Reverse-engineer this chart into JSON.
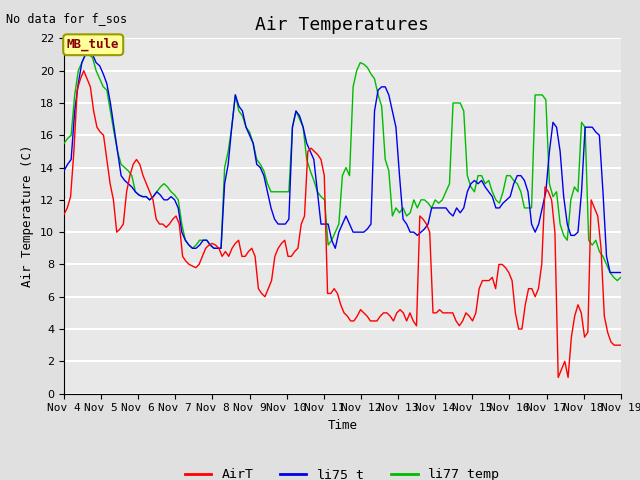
{
  "title": "Air Temperatures",
  "ylabel": "Air Temperature (C)",
  "xlabel": "Time",
  "no_data_text": "No data for f_sos",
  "station_label": "MB_tule",
  "ylim": [
    0,
    22
  ],
  "x_tick_labels": [
    "Nov 4",
    "Nov 5",
    "Nov 6",
    "Nov 7",
    "Nov 8",
    "Nov 9",
    "Nov 10",
    "Nov 11",
    "Nov 12",
    "Nov 13",
    "Nov 14",
    "Nov 15",
    "Nov 16",
    "Nov 17",
    "Nov 18",
    "Nov 19"
  ],
  "background_color": "#e0e0e0",
  "plot_bg_color": "#e8e8e8",
  "grid_color": "#ffffff",
  "colors": {
    "AirT": "#ff0000",
    "li75_t": "#0000ee",
    "li77_temp": "#00bb00"
  },
  "title_fontsize": 13,
  "label_fontsize": 9,
  "tick_fontsize": 8,
  "AirT": [
    11.1,
    11.5,
    12.2,
    15.0,
    18.8,
    19.5,
    20.0,
    19.5,
    19.0,
    17.5,
    16.5,
    16.2,
    16.0,
    14.5,
    13.0,
    12.0,
    10.0,
    10.2,
    10.5,
    12.5,
    13.5,
    14.2,
    14.5,
    14.2,
    13.5,
    13.0,
    12.5,
    12.0,
    10.8,
    10.5,
    10.5,
    10.3,
    10.5,
    10.8,
    11.0,
    10.5,
    8.5,
    8.2,
    8.0,
    7.9,
    7.8,
    8.0,
    8.5,
    9.0,
    9.2,
    9.3,
    9.2,
    9.0,
    8.5,
    8.8,
    8.5,
    9.0,
    9.3,
    9.5,
    8.5,
    8.5,
    8.8,
    9.0,
    8.5,
    6.5,
    6.2,
    6.0,
    6.5,
    7.0,
    8.5,
    9.0,
    9.3,
    9.5,
    8.5,
    8.5,
    8.8,
    9.0,
    10.5,
    11.0,
    15.0,
    15.2,
    15.0,
    14.8,
    14.5,
    13.5,
    6.2,
    6.2,
    6.5,
    6.2,
    5.5,
    5.0,
    4.8,
    4.5,
    4.5,
    4.8,
    5.2,
    5.0,
    4.8,
    4.5,
    4.5,
    4.5,
    4.8,
    5.0,
    5.0,
    4.8,
    4.5,
    5.0,
    5.2,
    5.0,
    4.5,
    5.0,
    4.5,
    4.2,
    11.0,
    10.8,
    10.5,
    10.0,
    5.0,
    5.0,
    5.2,
    5.0,
    5.0,
    5.0,
    5.0,
    4.5,
    4.2,
    4.5,
    5.0,
    4.8,
    4.5,
    5.0,
    6.5,
    7.0,
    7.0,
    7.0,
    7.2,
    6.5,
    8.0,
    8.0,
    7.8,
    7.5,
    7.0,
    5.0,
    4.0,
    4.0,
    5.5,
    6.5,
    6.5,
    6.0,
    6.5,
    8.0,
    12.8,
    12.5,
    12.0,
    10.0,
    1.0,
    1.5,
    2.0,
    1.0,
    3.5,
    4.8,
    5.5,
    5.0,
    3.5,
    3.8,
    12.0,
    11.5,
    11.0,
    9.0,
    4.8,
    3.8,
    3.2,
    3.0,
    3.0,
    3.0
  ],
  "li75_t": [
    13.8,
    14.2,
    14.5,
    17.5,
    19.2,
    20.5,
    21.0,
    21.0,
    21.0,
    20.5,
    20.3,
    19.8,
    19.2,
    18.0,
    16.5,
    15.0,
    13.5,
    13.2,
    13.0,
    12.8,
    12.5,
    12.3,
    12.2,
    12.2,
    12.0,
    12.2,
    12.5,
    12.3,
    12.0,
    12.0,
    12.2,
    12.0,
    11.5,
    10.0,
    9.5,
    9.2,
    9.0,
    9.0,
    9.2,
    9.5,
    9.5,
    9.2,
    9.0,
    9.0,
    9.0,
    13.0,
    14.2,
    16.5,
    18.5,
    17.8,
    17.5,
    16.5,
    16.0,
    15.5,
    14.2,
    14.0,
    13.5,
    12.5,
    11.5,
    10.8,
    10.5,
    10.5,
    10.5,
    10.8,
    16.5,
    17.5,
    17.2,
    16.5,
    15.5,
    15.0,
    14.5,
    12.5,
    10.5,
    10.5,
    10.5,
    9.5,
    9.0,
    10.0,
    10.5,
    11.0,
    10.5,
    10.0,
    10.0,
    10.0,
    10.0,
    10.2,
    10.5,
    17.5,
    18.8,
    19.0,
    19.0,
    18.5,
    17.5,
    16.5,
    13.5,
    10.8,
    10.5,
    10.0,
    10.0,
    9.8,
    10.0,
    10.2,
    10.5,
    11.5,
    11.5,
    11.5,
    11.5,
    11.5,
    11.2,
    11.0,
    11.5,
    11.2,
    11.5,
    12.5,
    13.0,
    13.2,
    13.0,
    13.2,
    12.8,
    12.5,
    12.2,
    11.5,
    11.5,
    11.8,
    12.0,
    12.2,
    13.0,
    13.5,
    13.5,
    13.2,
    12.5,
    10.5,
    10.0,
    10.5,
    11.5,
    12.5,
    15.0,
    16.8,
    16.5,
    15.0,
    12.2,
    10.5,
    9.8,
    9.8,
    10.0,
    12.5,
    16.5,
    16.5,
    16.5,
    16.2,
    16.0,
    12.5,
    8.5,
    7.5,
    7.5,
    7.5,
    7.5
  ],
  "li77_temp": [
    15.5,
    15.8,
    16.0,
    18.5,
    20.0,
    20.5,
    21.0,
    21.0,
    20.8,
    20.0,
    19.5,
    19.0,
    18.8,
    17.5,
    16.2,
    15.0,
    14.2,
    14.0,
    13.8,
    13.5,
    12.5,
    12.3,
    12.2,
    12.2,
    12.0,
    12.2,
    12.5,
    12.8,
    13.0,
    12.8,
    12.5,
    12.3,
    12.0,
    10.5,
    9.5,
    9.2,
    9.0,
    9.2,
    9.5,
    9.5,
    9.5,
    9.2,
    9.0,
    9.0,
    9.0,
    14.0,
    15.0,
    16.5,
    18.5,
    17.5,
    17.2,
    16.5,
    16.2,
    15.5,
    14.5,
    14.2,
    13.8,
    13.0,
    12.5,
    12.5,
    12.5,
    12.5,
    12.5,
    12.5,
    16.5,
    17.5,
    17.0,
    16.5,
    14.5,
    13.8,
    13.2,
    12.5,
    12.2,
    12.0,
    9.2,
    9.5,
    10.0,
    10.5,
    13.5,
    14.0,
    13.5,
    19.0,
    20.0,
    20.5,
    20.4,
    20.2,
    19.8,
    19.5,
    18.5,
    17.8,
    14.5,
    13.8,
    11.0,
    11.5,
    11.2,
    11.5,
    11.0,
    11.2,
    12.0,
    11.5,
    12.0,
    12.0,
    11.8,
    11.5,
    12.0,
    11.8,
    12.0,
    12.5,
    13.0,
    18.0,
    18.0,
    18.0,
    17.5,
    13.5,
    12.8,
    12.5,
    13.5,
    13.5,
    13.0,
    13.2,
    12.5,
    12.0,
    11.8,
    12.5,
    13.5,
    13.5,
    13.2,
    13.0,
    12.5,
    11.5,
    11.5,
    11.5,
    18.5,
    18.5,
    18.5,
    18.2,
    13.0,
    12.2,
    12.5,
    10.5,
    9.8,
    9.5,
    12.0,
    12.8,
    12.5,
    16.8,
    16.5,
    9.5,
    9.2,
    9.5,
    8.8,
    8.5,
    8.0,
    7.5,
    7.2,
    7.0,
    7.2
  ]
}
